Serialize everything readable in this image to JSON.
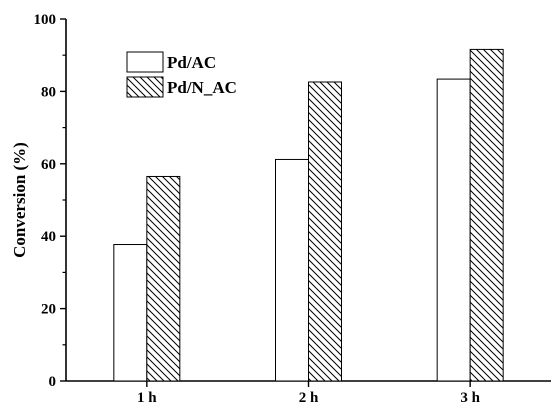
{
  "chart_data": {
    "type": "bar",
    "categories": [
      "1 h",
      "2 h",
      "3 h"
    ],
    "series": [
      {
        "name": "Pd/AC",
        "values": [
          37.7,
          61.2,
          83.4
        ],
        "pattern": "open"
      },
      {
        "name": "Pd/N_AC",
        "values": [
          56.5,
          82.6,
          91.6
        ],
        "pattern": "hatched"
      }
    ],
    "title": "",
    "xlabel": "",
    "ylabel": "Conversion (%)",
    "ylim": [
      0,
      100
    ],
    "yticks": [
      0,
      20,
      40,
      60,
      80,
      100
    ],
    "grid": false,
    "legend_position": "top-left"
  }
}
